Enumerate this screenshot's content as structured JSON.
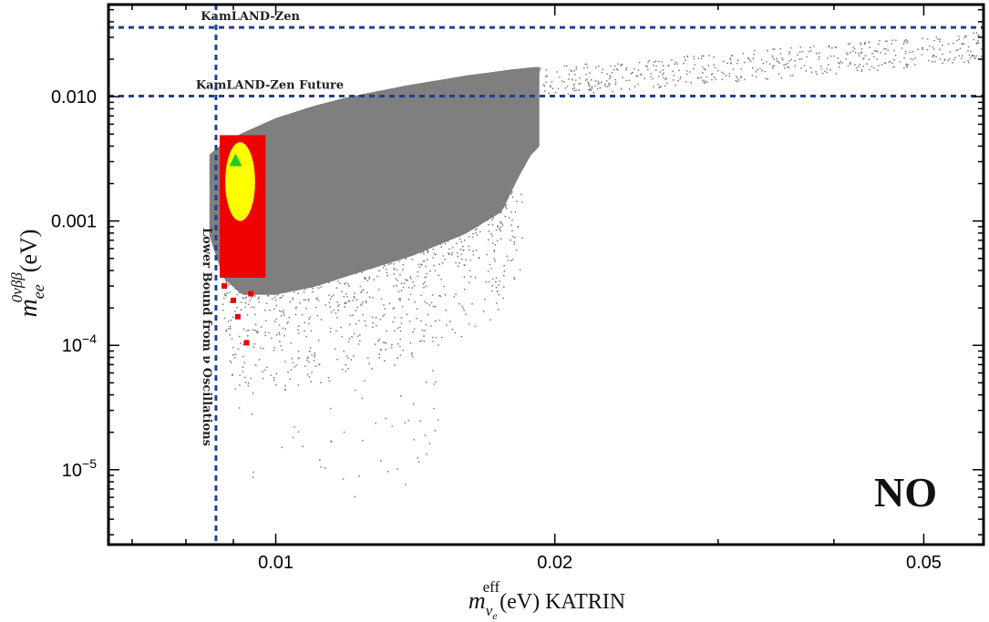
{
  "chart_data": {
    "type": "scatter",
    "title": "",
    "xlabel": {
      "main": "m",
      "sub": "ν",
      "subsub": "e",
      "sup": "eff",
      "rest": "(eV) KATRIN"
    },
    "ylabel": {
      "main": "m",
      "sub": "ee",
      "sup": "0νββ",
      "rest": "(eV)"
    },
    "x_scale": "log",
    "y_scale": "log",
    "xlim": [
      0.0066,
      0.058
    ],
    "ylim": [
      2.5e-06,
      0.055
    ],
    "x_ticks": [
      {
        "value": 0.01,
        "label": "0.01"
      },
      {
        "value": 0.02,
        "label": "0.02"
      },
      {
        "value": 0.05,
        "label": "0.05"
      }
    ],
    "y_ticks": [
      {
        "value": 0.01,
        "label": "0.010",
        "base": "",
        "exp": ""
      },
      {
        "value": 0.001,
        "label": "0.001",
        "base": "",
        "exp": ""
      },
      {
        "value": 0.0001,
        "label": "",
        "base": "10",
        "exp": "−4"
      },
      {
        "value": 1e-05,
        "label": "",
        "base": "10",
        "exp": "−5"
      }
    ],
    "reference_lines": [
      {
        "orientation": "horizontal",
        "value": 0.036,
        "label": "KamLAND-Zen",
        "label_x": 0.0083,
        "color": "#1f3f93"
      },
      {
        "orientation": "horizontal",
        "value": 0.0101,
        "label": "KamLAND-Zen Future",
        "label_x": 0.0082,
        "color": "#1f3f93"
      },
      {
        "orientation": "vertical",
        "value": 0.00862,
        "label": "Lower Bound from ν Oscillations",
        "color": "#1f3f93"
      }
    ],
    "series": [
      {
        "name": "",
        "color": "#7f7f7f",
        "region": {
          "x_range": [
            0.0085,
            0.0192
          ],
          "upper_points": [
            [
              0.0085,
              0.0034
            ],
            [
              0.0088,
              0.0042
            ],
            [
              0.0092,
              0.005
            ],
            [
              0.01,
              0.0066
            ],
            [
              0.011,
              0.0083
            ],
            [
              0.012,
              0.0098
            ],
            [
              0.014,
              0.0123
            ],
            [
              0.016,
              0.0145
            ],
            [
              0.018,
              0.0163
            ],
            [
              0.019,
              0.017
            ]
          ],
          "lower_points": [
            [
              0.0083,
              0.0013
            ],
            [
              0.0088,
              0.00035
            ],
            [
              0.0092,
              0.00026
            ],
            [
              0.01,
              0.00026
            ],
            [
              0.011,
              0.0003
            ],
            [
              0.012,
              0.00037
            ],
            [
              0.014,
              0.00053
            ],
            [
              0.016,
              0.0008
            ],
            [
              0.0175,
              0.0012
            ],
            [
              0.0182,
              0.0022
            ],
            [
              0.0188,
              0.0034
            ],
            [
              0.0192,
              0.004
            ]
          ]
        },
        "sparse_range": {
          "x": [
            0.0192,
            0.058
          ],
          "y": [
            0.01,
            0.036
          ]
        },
        "tail_range": {
          "x": [
            0.0088,
            0.015
          ],
          "y": [
            6e-06,
            0.0004
          ]
        }
      },
      {
        "name": "",
        "color": "#ee0000",
        "region": {
          "x": [
            0.0087,
            0.00975
          ],
          "y": [
            0.00035,
            0.0049
          ]
        },
        "extra_points": [
          [
            0.0088,
            0.0003
          ],
          [
            0.009,
            0.00023
          ],
          [
            0.0091,
            0.00017
          ],
          [
            0.0093,
            0.000105
          ],
          [
            0.0094,
            0.00026
          ]
        ]
      },
      {
        "name": "",
        "color": "#ffff00",
        "region": {
          "x": [
            0.00882,
            0.0095
          ],
          "y": [
            0.001,
            0.0043
          ]
        }
      },
      {
        "name": "",
        "color": "#22cc22",
        "marker": "triangle",
        "points": [
          [
            0.00905,
            0.00305
          ]
        ]
      }
    ],
    "annotations": [
      {
        "text": "NO",
        "position": "bottom-right"
      }
    ],
    "grid": false,
    "legend": "none"
  }
}
